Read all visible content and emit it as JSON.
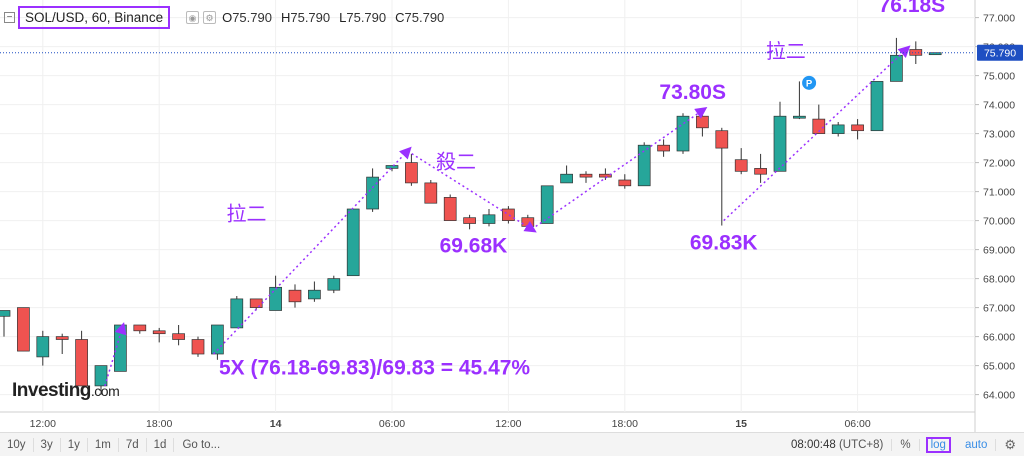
{
  "header": {
    "symbol_label": "SOL/USD, 60, Binance",
    "ohlc": {
      "o_label": "O",
      "o_value": "75.790",
      "h_label": "H",
      "h_value": "75.790",
      "l_label": "L",
      "l_value": "75.790",
      "c_label": "C",
      "c_value": "75.790"
    }
  },
  "logo": {
    "main": "Investing",
    "suffix": ".com"
  },
  "chart_data": {
    "type": "candlestick",
    "ylim": [
      63.4,
      77.4
    ],
    "yticks": [
      64.0,
      65.0,
      66.0,
      67.0,
      68.0,
      69.0,
      70.0,
      71.0,
      72.0,
      73.0,
      74.0,
      75.0,
      76.0,
      77.0
    ],
    "ytick_labels": [
      "64.000",
      "65.000",
      "66.000",
      "67.000",
      "68.000",
      "69.000",
      "70.000",
      "71.000",
      "72.000",
      "73.000",
      "74.000",
      "75.000",
      "76.000",
      "77.000"
    ],
    "xticks": [
      {
        "index": 2.0,
        "label": "12:00",
        "bold": false
      },
      {
        "index": 8.0,
        "label": "18:00",
        "bold": false
      },
      {
        "index": 14.0,
        "label": "14",
        "bold": true
      },
      {
        "index": 20.0,
        "label": "06:00",
        "bold": false
      },
      {
        "index": 26.0,
        "label": "12:00",
        "bold": false
      },
      {
        "index": 32.0,
        "label": "18:00",
        "bold": false
      },
      {
        "index": 38.0,
        "label": "15",
        "bold": true
      },
      {
        "index": 44.0,
        "label": "06:00",
        "bold": false
      }
    ],
    "last_price": 75.79,
    "last_price_label": "75.790",
    "candles": [
      {
        "o": 66.7,
        "h": 66.9,
        "l": 66.0,
        "c": 66.9
      },
      {
        "o": 67.0,
        "h": 67.0,
        "l": 65.5,
        "c": 65.5
      },
      {
        "o": 65.3,
        "h": 66.2,
        "l": 65.0,
        "c": 66.0
      },
      {
        "o": 66.0,
        "h": 66.1,
        "l": 65.4,
        "c": 65.9
      },
      {
        "o": 65.9,
        "h": 66.2,
        "l": 64.3,
        "c": 64.3
      },
      {
        "o": 64.3,
        "h": 65.0,
        "l": 64.0,
        "c": 65.0
      },
      {
        "o": 64.8,
        "h": 66.4,
        "l": 64.8,
        "c": 66.4
      },
      {
        "o": 66.4,
        "h": 66.4,
        "l": 66.1,
        "c": 66.2
      },
      {
        "o": 66.2,
        "h": 66.3,
        "l": 65.8,
        "c": 66.1
      },
      {
        "o": 66.1,
        "h": 66.4,
        "l": 65.7,
        "c": 65.9
      },
      {
        "o": 65.9,
        "h": 66.0,
        "l": 65.3,
        "c": 65.4
      },
      {
        "o": 65.4,
        "h": 66.4,
        "l": 65.2,
        "c": 66.4
      },
      {
        "o": 66.3,
        "h": 67.4,
        "l": 66.3,
        "c": 67.3
      },
      {
        "o": 67.3,
        "h": 67.3,
        "l": 66.9,
        "c": 67.0
      },
      {
        "o": 66.9,
        "h": 68.1,
        "l": 66.9,
        "c": 67.7
      },
      {
        "o": 67.6,
        "h": 67.8,
        "l": 67.0,
        "c": 67.2
      },
      {
        "o": 67.3,
        "h": 67.9,
        "l": 67.2,
        "c": 67.6
      },
      {
        "o": 67.6,
        "h": 68.1,
        "l": 67.5,
        "c": 68.0
      },
      {
        "o": 68.1,
        "h": 70.4,
        "l": 68.1,
        "c": 70.4
      },
      {
        "o": 70.4,
        "h": 71.8,
        "l": 70.3,
        "c": 71.5
      },
      {
        "o": 71.8,
        "h": 71.9,
        "l": 71.7,
        "c": 71.9
      },
      {
        "o": 72.0,
        "h": 72.3,
        "l": 71.2,
        "c": 71.3
      },
      {
        "o": 71.3,
        "h": 71.4,
        "l": 70.6,
        "c": 70.6
      },
      {
        "o": 70.8,
        "h": 70.9,
        "l": 70.0,
        "c": 70.0
      },
      {
        "o": 70.1,
        "h": 70.2,
        "l": 69.7,
        "c": 69.9
      },
      {
        "o": 69.9,
        "h": 70.4,
        "l": 69.8,
        "c": 70.2
      },
      {
        "o": 70.4,
        "h": 70.5,
        "l": 69.9,
        "c": 70.0
      },
      {
        "o": 70.1,
        "h": 70.2,
        "l": 69.7,
        "c": 69.8
      },
      {
        "o": 69.9,
        "h": 71.2,
        "l": 69.9,
        "c": 71.2
      },
      {
        "o": 71.3,
        "h": 71.9,
        "l": 71.3,
        "c": 71.6
      },
      {
        "o": 71.6,
        "h": 71.7,
        "l": 71.3,
        "c": 71.5
      },
      {
        "o": 71.6,
        "h": 71.8,
        "l": 71.4,
        "c": 71.5
      },
      {
        "o": 71.4,
        "h": 71.6,
        "l": 71.1,
        "c": 71.2
      },
      {
        "o": 71.2,
        "h": 72.7,
        "l": 71.2,
        "c": 72.6
      },
      {
        "o": 72.6,
        "h": 72.8,
        "l": 72.2,
        "c": 72.4
      },
      {
        "o": 72.4,
        "h": 73.7,
        "l": 72.3,
        "c": 73.6
      },
      {
        "o": 73.6,
        "h": 73.8,
        "l": 72.9,
        "c": 73.2
      },
      {
        "o": 73.1,
        "h": 73.2,
        "l": 69.83,
        "c": 72.5
      },
      {
        "o": 72.1,
        "h": 72.5,
        "l": 71.6,
        "c": 71.7
      },
      {
        "o": 71.8,
        "h": 72.3,
        "l": 71.3,
        "c": 71.6
      },
      {
        "o": 71.7,
        "h": 74.1,
        "l": 71.7,
        "c": 73.6
      },
      {
        "o": 73.6,
        "h": 74.8,
        "l": 73.5,
        "c": 73.6
      },
      {
        "o": 73.5,
        "h": 74.0,
        "l": 73.0,
        "c": 73.0
      },
      {
        "o": 73.0,
        "h": 73.4,
        "l": 72.9,
        "c": 73.3
      },
      {
        "o": 73.3,
        "h": 73.5,
        "l": 72.8,
        "c": 73.1
      },
      {
        "o": 73.1,
        "h": 74.8,
        "l": 73.1,
        "c": 74.8
      },
      {
        "o": 74.8,
        "h": 76.3,
        "l": 74.8,
        "c": 75.7
      },
      {
        "o": 75.9,
        "h": 76.18,
        "l": 75.4,
        "c": 75.7
      },
      {
        "o": 75.79,
        "h": 75.79,
        "l": 75.79,
        "c": 75.79
      }
    ],
    "annotations": [
      {
        "text": "拉二",
        "at_index": 12.5,
        "at_price": 70.0
      },
      {
        "text": "殺二",
        "at_index": 23.3,
        "at_price": 71.8
      },
      {
        "text": "拉二",
        "at_index": 40.3,
        "at_price": 75.6
      },
      {
        "text": "69.68K",
        "at_index": 24.2,
        "at_price": 68.9
      },
      {
        "text": "73.80S",
        "at_index": 35.5,
        "at_price": 74.2
      },
      {
        "text": "69.83K",
        "at_index": 37.1,
        "at_price": 69.0
      },
      {
        "text": "76.18S",
        "at_index": 46.8,
        "at_price": 77.2
      },
      {
        "text": "5X (76.18-69.83)/69.83 = 45.47%",
        "at_index": 19.1,
        "at_price": 64.7
      }
    ],
    "trend_lines": [
      {
        "from": [
          5.2,
          64.3
        ],
        "to": [
          6.1,
          66.3
        ]
      },
      {
        "from": [
          10.8,
          65.4
        ],
        "to": [
          20.8,
          72.4
        ]
      },
      {
        "from": [
          20.8,
          72.4
        ],
        "to": [
          27.2,
          69.7
        ]
      },
      {
        "from": [
          27.2,
          69.7
        ],
        "to": [
          36.0,
          73.8
        ]
      },
      {
        "from": [
          37.1,
          70.0
        ],
        "to": [
          46.5,
          75.9
        ]
      }
    ],
    "marker_label": "P",
    "marker": {
      "at_index": 41.5,
      "at_price": 74.75
    },
    "colors": {
      "up": "#26a69a",
      "down": "#ef5350",
      "annotation": "#9b30ff",
      "last_price": "#1e4fc2",
      "marker": "#2196f3"
    }
  },
  "footer": {
    "ranges": [
      "10y",
      "3y",
      "1y",
      "1m",
      "7d",
      "1d"
    ],
    "goto_label": "Go to...",
    "time": "08:00:48",
    "timezone": "(UTC+8)",
    "percent_label": "%",
    "log_label": "log",
    "auto_label": "auto",
    "settings_icon": "gear-icon"
  }
}
